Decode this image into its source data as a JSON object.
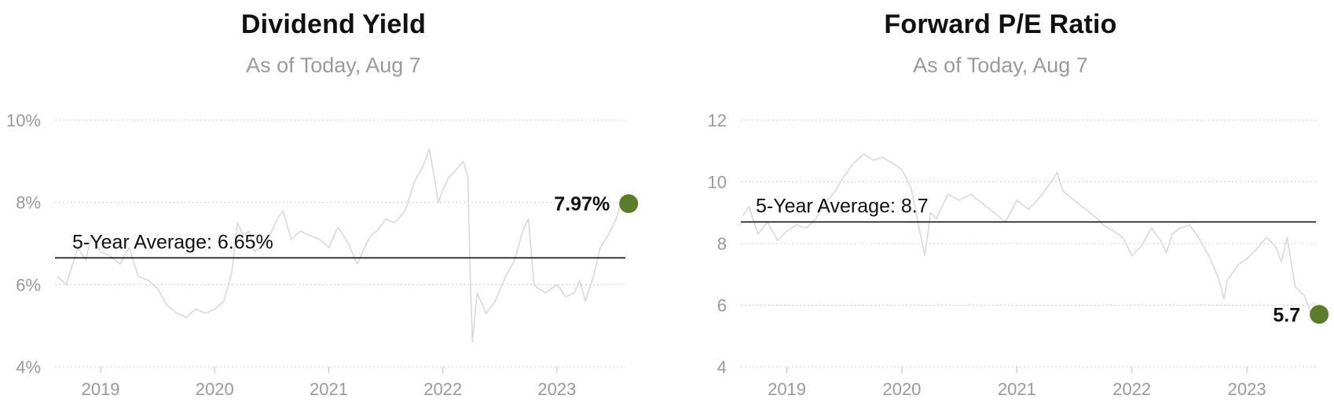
{
  "chart_data": [
    {
      "type": "line",
      "title": "Dividend Yield",
      "subtitle": "As of Today, Aug 7",
      "ylim": [
        4,
        10
      ],
      "yticks": [
        4,
        6,
        8,
        10
      ],
      "ytick_labels": [
        "4%",
        "6%",
        "8%",
        "10%"
      ],
      "xlim": [
        2018.6,
        2023.6
      ],
      "xticks": [
        2019,
        2020,
        2021,
        2022,
        2023
      ],
      "xtick_labels": [
        "2019",
        "2020",
        "2021",
        "2022",
        "2023"
      ],
      "grid": true,
      "average": {
        "value": 6.65,
        "label": "5-Year Average: 6.65%"
      },
      "current": {
        "value": 7.97,
        "label": "7.97%"
      },
      "series": [
        {
          "color": "#d9d9d9",
          "x": [
            2018.62,
            2018.7,
            2018.8,
            2018.87,
            2018.92,
            2019.0,
            2019.08,
            2019.17,
            2019.25,
            2019.33,
            2019.42,
            2019.5,
            2019.58,
            2019.67,
            2019.75,
            2019.83,
            2019.92,
            2020.0,
            2020.08,
            2020.15,
            2020.2,
            2020.25,
            2020.3,
            2020.35,
            2020.45,
            2020.55,
            2020.6,
            2020.67,
            2020.75,
            2020.83,
            2020.92,
            2021.0,
            2021.08,
            2021.17,
            2021.25,
            2021.33,
            2021.37,
            2021.42,
            2021.5,
            2021.58,
            2021.67,
            2021.75,
            2021.83,
            2021.88,
            2021.92,
            2021.96,
            2022.0,
            2022.05,
            2022.12,
            2022.18,
            2022.22,
            2022.24,
            2022.26,
            2022.3,
            2022.38,
            2022.46,
            2022.55,
            2022.63,
            2022.7,
            2022.75,
            2022.8,
            2022.84,
            2022.9,
            2023.0,
            2023.08,
            2023.15,
            2023.2,
            2023.25,
            2023.32,
            2023.38,
            2023.45,
            2023.52,
            2023.56
          ],
          "values": [
            6.2,
            6.0,
            6.9,
            6.6,
            7.2,
            6.8,
            6.7,
            6.5,
            6.9,
            6.2,
            6.1,
            5.9,
            5.5,
            5.3,
            5.2,
            5.4,
            5.3,
            5.4,
            5.6,
            6.3,
            7.5,
            7.2,
            7.3,
            6.8,
            7.0,
            7.6,
            7.8,
            7.1,
            7.3,
            7.2,
            7.1,
            6.9,
            7.4,
            7.0,
            6.5,
            7.0,
            7.2,
            7.3,
            7.6,
            7.5,
            7.8,
            8.5,
            8.9,
            9.3,
            8.7,
            8.0,
            8.3,
            8.6,
            8.8,
            9.0,
            8.6,
            6.2,
            4.6,
            5.8,
            5.3,
            5.6,
            6.2,
            6.6,
            7.3,
            7.6,
            6.0,
            5.9,
            5.8,
            6.0,
            5.7,
            5.8,
            6.1,
            5.6,
            6.2,
            6.9,
            7.2,
            7.6,
            7.97
          ]
        }
      ]
    },
    {
      "type": "line",
      "title": "Forward P/E Ratio",
      "subtitle": "As of Today, Aug 7",
      "ylim": [
        4,
        12
      ],
      "yticks": [
        4,
        6,
        8,
        10,
        12
      ],
      "ytick_labels": [
        "4",
        "6",
        "8",
        "10",
        "12"
      ],
      "xlim": [
        2018.6,
        2023.6
      ],
      "xticks": [
        2019,
        2020,
        2021,
        2022,
        2023
      ],
      "xtick_labels": [
        "2019",
        "2020",
        "2021",
        "2022",
        "2023"
      ],
      "grid": true,
      "average": {
        "value": 8.7,
        "label": "5-Year Average: 8.7"
      },
      "current": {
        "value": 5.7,
        "label": "5.7"
      },
      "series": [
        {
          "color": "#d9d9d9",
          "x": [
            2018.62,
            2018.67,
            2018.75,
            2018.83,
            2018.92,
            2019.0,
            2019.08,
            2019.17,
            2019.25,
            2019.33,
            2019.42,
            2019.5,
            2019.58,
            2019.67,
            2019.75,
            2019.83,
            2019.92,
            2020.0,
            2020.08,
            2020.15,
            2020.2,
            2020.25,
            2020.3,
            2020.4,
            2020.5,
            2020.6,
            2020.7,
            2020.8,
            2020.9,
            2021.0,
            2021.1,
            2021.2,
            2021.3,
            2021.35,
            2021.4,
            2021.5,
            2021.6,
            2021.7,
            2021.75,
            2021.8,
            2021.88,
            2021.92,
            2022.0,
            2022.08,
            2022.17,
            2022.25,
            2022.3,
            2022.35,
            2022.42,
            2022.5,
            2022.58,
            2022.67,
            2022.75,
            2022.8,
            2022.83,
            2022.92,
            2023.0,
            2023.08,
            2023.17,
            2023.25,
            2023.3,
            2023.35,
            2023.42,
            2023.5,
            2023.56
          ],
          "values": [
            8.9,
            9.2,
            8.3,
            8.7,
            8.1,
            8.4,
            8.6,
            8.5,
            8.8,
            9.3,
            9.7,
            10.2,
            10.6,
            10.9,
            10.7,
            10.8,
            10.6,
            10.4,
            9.8,
            8.5,
            7.6,
            9.0,
            8.8,
            9.6,
            9.4,
            9.6,
            9.3,
            9.0,
            8.7,
            9.4,
            9.1,
            9.5,
            10.0,
            10.3,
            9.7,
            9.4,
            9.1,
            8.8,
            8.6,
            8.5,
            8.3,
            8.2,
            7.6,
            7.9,
            8.5,
            8.1,
            7.7,
            8.3,
            8.5,
            8.6,
            8.2,
            7.6,
            6.9,
            6.2,
            6.8,
            7.3,
            7.5,
            7.8,
            8.2,
            7.9,
            7.4,
            8.2,
            6.6,
            6.3,
            5.7
          ]
        }
      ]
    }
  ]
}
